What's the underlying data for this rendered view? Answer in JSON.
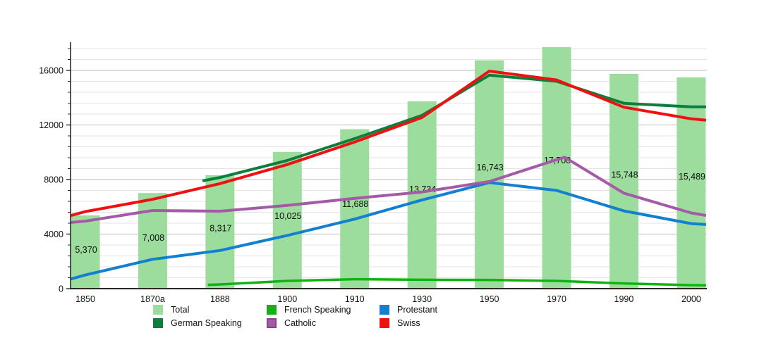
{
  "chart_data": {
    "type": "bar+line",
    "title": "",
    "xlabel": "",
    "ylabel": "",
    "categories": [
      "1850",
      "1870a",
      "1888",
      "1900",
      "1910",
      "1930",
      "1950",
      "1970",
      "1990",
      "2000"
    ],
    "y_axis": {
      "tick_labels": [
        "0",
        "4000",
        "8000",
        "12000",
        "16000"
      ],
      "ticks": [
        0,
        4000,
        8000,
        12000,
        16000
      ],
      "minor_step": 800,
      "ylim": [
        0,
        18065
      ],
      "grid": "on"
    },
    "bars": {
      "name": "Total",
      "values": [
        5370,
        7008,
        8317,
        10025,
        11688,
        13734,
        16743,
        17708,
        15748,
        15489
      ],
      "display_labels": [
        "5,370",
        "7,008",
        "8,317",
        "10,025",
        "11,688",
        "13,734",
        "16,743",
        "17,708",
        "15,748",
        "15,489"
      ]
    },
    "lines": [
      {
        "name": "French Speaking",
        "key": "french",
        "points": [
          [
            1.82,
            280
          ],
          [
            2,
            310
          ],
          [
            3,
            570
          ],
          [
            4,
            690
          ],
          [
            5,
            650
          ],
          [
            6,
            640
          ],
          [
            7,
            570
          ],
          [
            8,
            380
          ],
          [
            9,
            260
          ],
          [
            9.22,
            250
          ]
        ]
      },
      {
        "name": "German Speaking",
        "key": "german",
        "points": [
          [
            1.74,
            7900
          ],
          [
            2,
            8150
          ],
          [
            3,
            9400
          ],
          [
            4,
            11000
          ],
          [
            5,
            12700
          ],
          [
            6,
            15650
          ],
          [
            7,
            15200
          ],
          [
            8,
            13590
          ],
          [
            9,
            13330
          ],
          [
            9.22,
            13330
          ]
        ]
      },
      {
        "name": "Protestant",
        "key": "protestant",
        "points": [
          [
            -0.22,
            700
          ],
          [
            0,
            1000
          ],
          [
            1,
            2150
          ],
          [
            2,
            2800
          ],
          [
            3,
            3900
          ],
          [
            4,
            5100
          ],
          [
            5,
            6500
          ],
          [
            6,
            7780
          ],
          [
            7,
            7200
          ],
          [
            8,
            5700
          ],
          [
            9,
            4770
          ],
          [
            9.22,
            4700
          ]
        ]
      },
      {
        "name": "Catholic",
        "key": "catholic",
        "points": [
          [
            -0.22,
            4850
          ],
          [
            0,
            4950
          ],
          [
            1,
            5730
          ],
          [
            2,
            5680
          ],
          [
            3,
            6100
          ],
          [
            4,
            6620
          ],
          [
            5,
            7085
          ],
          [
            6,
            7850
          ],
          [
            7,
            9450
          ],
          [
            7.12,
            9630
          ],
          [
            8,
            7000
          ],
          [
            9,
            5550
          ],
          [
            9.22,
            5370
          ]
        ]
      },
      {
        "name": "Swiss",
        "key": "swiss",
        "points": [
          [
            -0.22,
            5350
          ],
          [
            0,
            5650
          ],
          [
            1,
            6550
          ],
          [
            2,
            7700
          ],
          [
            3,
            9100
          ],
          [
            4,
            10750
          ],
          [
            5,
            12550
          ],
          [
            6,
            15950
          ],
          [
            7,
            15300
          ],
          [
            8,
            13300
          ],
          [
            9,
            12450
          ],
          [
            9.22,
            12350
          ]
        ]
      }
    ],
    "legend": [
      {
        "label": "Total",
        "key": "total"
      },
      {
        "label": "German Speaking",
        "key": "german"
      },
      {
        "label": "French Speaking",
        "key": "french"
      },
      {
        "label": "Catholic",
        "key": "catholic"
      },
      {
        "label": "Protestant",
        "key": "protestant"
      },
      {
        "label": "Swiss",
        "key": "swiss"
      }
    ],
    "colors": {
      "total": "#9cdc9c",
      "german": "#0e7d3e",
      "french": "#10b410",
      "protestant": "#1180d2",
      "catholic": "#a55aa8",
      "catholic_border": "#8a4190",
      "swiss": "#ee1111",
      "grid_minor": "#e4e4e4",
      "grid_major": "#bbbbbb",
      "axis": "#2a2a2a",
      "text": "#111111"
    },
    "legend_position": "bottom"
  }
}
